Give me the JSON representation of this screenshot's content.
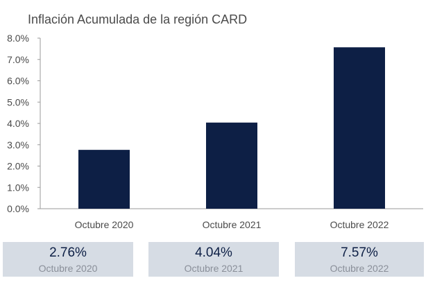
{
  "chart_data": {
    "type": "bar",
    "title": "Inflación Acumulada de la región CARD",
    "categories": [
      "Octubre 2020",
      "Octubre 2021",
      "Octubre 2022"
    ],
    "values": [
      2.76,
      4.04,
      7.57
    ],
    "yticks": [
      "0.0%",
      "1.0%",
      "2.0%",
      "3.0%",
      "4.0%",
      "5.0%",
      "6.0%",
      "7.0%",
      "8.0%"
    ],
    "ylim": [
      0,
      8
    ],
    "grid": false,
    "bar_color": "#0d1f45"
  },
  "cards": [
    {
      "value": "2.76%",
      "label": "Octubre 2020"
    },
    {
      "value": "4.04%",
      "label": "Octubre 2021"
    },
    {
      "value": "7.57%",
      "label": "Octubre 2022"
    }
  ]
}
